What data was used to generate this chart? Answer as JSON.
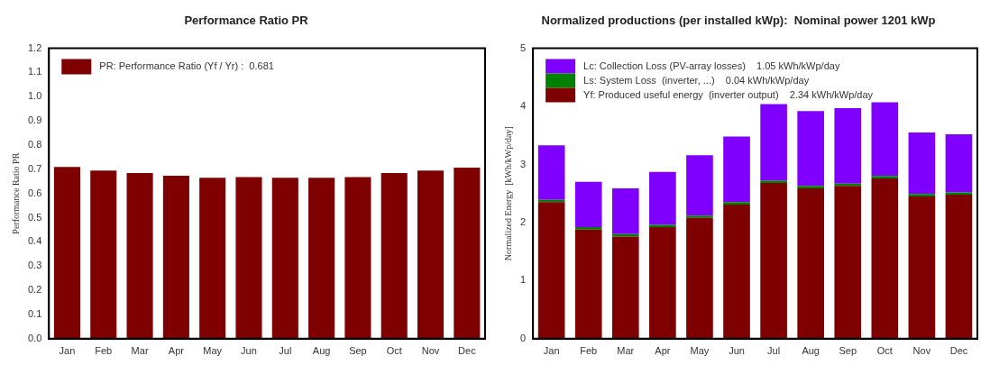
{
  "chart_data": [
    {
      "type": "bar",
      "title": "Performance Ratio PR",
      "ylabel": "Performance Ratio PR",
      "categories": [
        "Jan",
        "Feb",
        "Mar",
        "Apr",
        "May",
        "Jun",
        "Jul",
        "Aug",
        "Sep",
        "Oct",
        "Nov",
        "Dec"
      ],
      "series": [
        {
          "name": "PR: Performance Ratio (Yf / Yr) :  0.681",
          "color": "#7f0000",
          "values": [
            0.71,
            0.695,
            0.685,
            0.673,
            0.665,
            0.668,
            0.665,
            0.665,
            0.668,
            0.685,
            0.695,
            0.707
          ]
        }
      ],
      "ylim": [
        0,
        1.2
      ],
      "yticks": [
        {
          "value": 0,
          "label": "0.0"
        },
        0.1,
        0.2,
        0.3,
        0.4,
        0.5,
        0.6,
        0.7,
        0.8,
        0.9,
        {
          "value": 1,
          "label": "1.0"
        },
        1.1,
        1.2
      ],
      "grid": false,
      "legend": "top left"
    },
    {
      "type": "bar",
      "title": "Normalized productions (per installed kWp):  Nominal power 1201 kWp",
      "ylabel": "Normalized Energy  [kWh/kWp/day]",
      "categories": [
        "Jan",
        "Feb",
        "Mar",
        "Apr",
        "May",
        "Jun",
        "Jul",
        "Aug",
        "Sep",
        "Oct",
        "Nov",
        "Dec"
      ],
      "stacked": true,
      "series": [
        {
          "name": "Yf: Produced useful energy  (inverter output)    2.34 kWh/kWp/day",
          "color": "#7f0000",
          "values": [
            2.35,
            1.88,
            1.76,
            1.92,
            2.08,
            2.31,
            2.68,
            2.59,
            2.63,
            2.76,
            2.45,
            2.48
          ]
        },
        {
          "name": "Ls: System Loss  (inverter, ...)    0.04 kWh/kWp/day",
          "color": "#008000",
          "values": [
            0.04,
            0.04,
            0.04,
            0.04,
            0.04,
            0.04,
            0.04,
            0.04,
            0.04,
            0.04,
            0.04,
            0.04
          ]
        },
        {
          "name": "Lc: Collection Loss (PV-array losses)    1.05 kWh/kWp/day",
          "color": "#8000ff",
          "values": [
            0.94,
            0.78,
            0.79,
            0.91,
            1.04,
            1.13,
            1.32,
            1.29,
            1.3,
            1.27,
            1.06,
            1.0
          ]
        }
      ],
      "ylim": [
        0,
        5
      ],
      "yticks": [
        0,
        1,
        2,
        3,
        4,
        5
      ],
      "grid": false,
      "legend": "top left"
    }
  ]
}
